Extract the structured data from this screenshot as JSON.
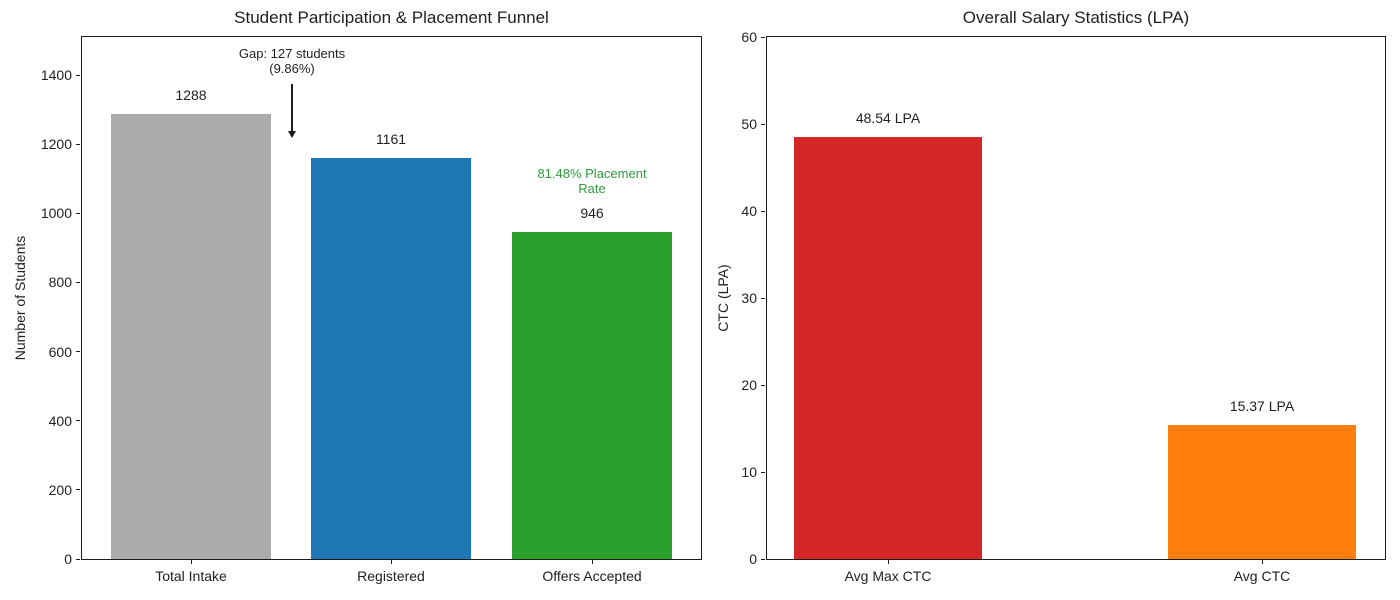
{
  "figure": {
    "background": "#ffffff",
    "text_color": "#1f1f1f",
    "spine_color": "#1c1c1c"
  },
  "chart_data": [
    {
      "type": "bar",
      "title": "Student Participation & Placement Funnel",
      "xlabel": "",
      "ylabel": "Number of Students",
      "categories": [
        "Total Intake",
        "Registered",
        "Offers Accepted"
      ],
      "values": [
        1288,
        1161,
        946
      ],
      "bar_labels": [
        "1288",
        "1161",
        "946"
      ],
      "bar_colors": [
        "#ababab",
        "#1f77b4",
        "#2ca02c"
      ],
      "ylim": [
        0,
        1510
      ],
      "yticks": [
        "0",
        "200",
        "400",
        "600",
        "800",
        "1000",
        "1200",
        "1400"
      ],
      "ytick_values": [
        0,
        200,
        400,
        600,
        800,
        1000,
        1200,
        1400
      ],
      "grid": false,
      "legend": null,
      "annotations": {
        "gap": {
          "line1": "Gap: 127 students",
          "line2": "(9.86%)",
          "color": "#1f1f1f",
          "arrow": "down"
        },
        "rate": {
          "line1": "81.48% Placement",
          "line2": "Rate",
          "color": "#2e9e3e"
        }
      }
    },
    {
      "type": "bar",
      "title": "Overall Salary Statistics (LPA)",
      "xlabel": "",
      "ylabel": "CTC (LPA)",
      "categories": [
        "Avg Max CTC",
        "Avg CTC"
      ],
      "values": [
        48.54,
        15.37
      ],
      "bar_labels": [
        "48.54 LPA",
        "15.37 LPA"
      ],
      "bar_colors": [
        "#d62728",
        "#ff7f0e"
      ],
      "ylim": [
        0,
        60
      ],
      "yticks": [
        "0",
        "10",
        "20",
        "30",
        "40",
        "50",
        "60"
      ],
      "ytick_values": [
        0,
        10,
        20,
        30,
        40,
        50,
        60
      ],
      "grid": false,
      "legend": null
    }
  ]
}
